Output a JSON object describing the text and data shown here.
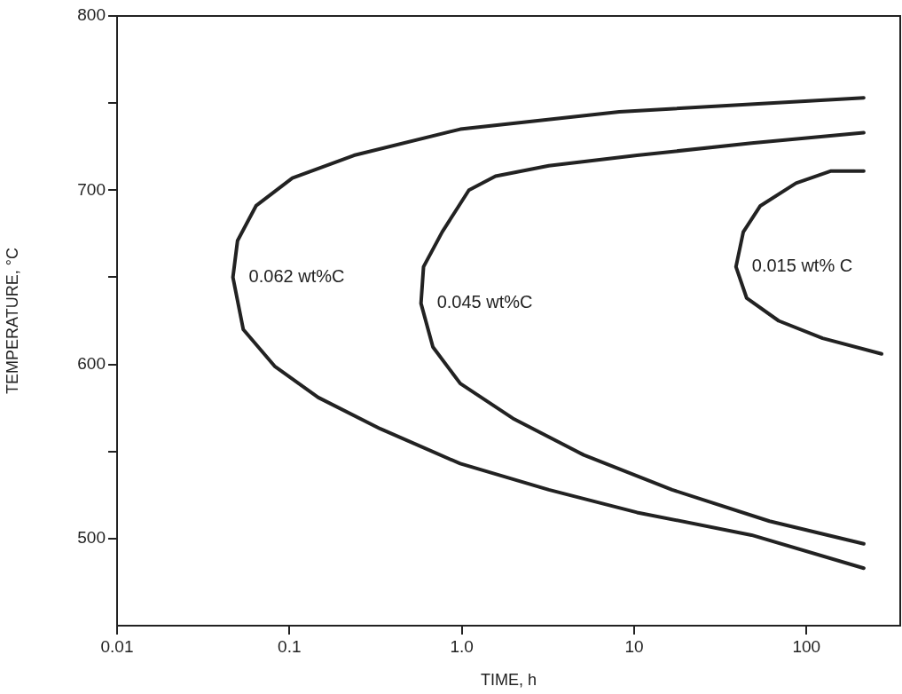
{
  "chart_data": {
    "type": "line",
    "xlabel": "TIME, h",
    "ylabel": "TEMPERATURE, °C",
    "log": "x",
    "xlim": [
      0.01,
      350
    ],
    "ylim": [
      450,
      800
    ],
    "xticks": [
      0.01,
      0.1,
      {
        "value": 1,
        "label": "1.0"
      },
      10,
      100
    ],
    "yticks": [
      500,
      {
        "value": 550,
        "label": null
      },
      600,
      {
        "value": 650,
        "label": null
      },
      700,
      {
        "value": 750,
        "label": null
      },
      800
    ],
    "grid": false,
    "legend": false,
    "marker": "none",
    "line_style": "solid",
    "series": [
      {
        "name": "0.062 wt%C",
        "color": "#222222",
        "x": [
          215,
          8.2,
          0.98,
          0.237,
          0.104,
          0.064,
          0.05,
          0.047,
          0.054,
          0.082,
          0.147,
          0.337,
          0.98,
          3.2,
          10.4,
          48,
          215
        ],
        "values": [
          753,
          745,
          735,
          720,
          707,
          691,
          671,
          650,
          620,
          599,
          581,
          563,
          543,
          528,
          515,
          502,
          483
        ]
      },
      {
        "name": "0.045 wt%C",
        "color": "#222222",
        "x": [
          215,
          48,
          10.4,
          3.2,
          1.57,
          1.1,
          0.77,
          0.6,
          0.58,
          0.68,
          0.98,
          1.98,
          5.1,
          16.6,
          61,
          215
        ],
        "values": [
          733,
          727,
          720,
          714,
          708,
          700,
          676,
          656,
          635,
          610,
          589,
          569,
          548,
          528,
          510,
          497
        ]
      },
      {
        "name": "0.015 wt% C",
        "color": "#222222",
        "x": [
          215,
          139,
          87,
          54,
          43,
          39,
          45,
          69,
          124,
          273
        ],
        "values": [
          711,
          711,
          704,
          691,
          676,
          656,
          638,
          625,
          615,
          606
        ]
      }
    ]
  }
}
